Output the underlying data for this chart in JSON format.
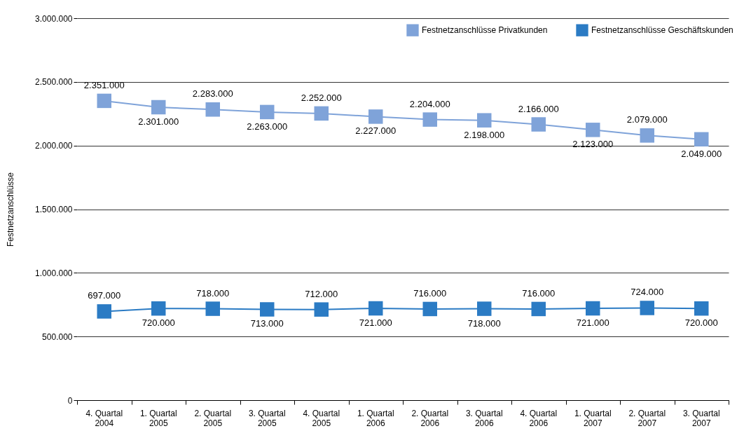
{
  "chart_data": {
    "type": "line",
    "ylabel": "Festnetzanschlüsse",
    "categories": [
      "4. Quartal 2004",
      "1. Quartal 2005",
      "2. Quartal 2005",
      "3. Quartal 2005",
      "4. Quartal 2005",
      "1. Quartal 2006",
      "2. Quartal 2006",
      "3. Quartal 2006",
      "4. Quartal 2006",
      "1. Quartal 2007",
      "2. Quartal 2007",
      "3. Quartal 2007"
    ],
    "series": [
      {
        "name": "Festnetzanschlüsse Privatkunden",
        "color": "#7fa3d9",
        "values": [
          2351000,
          2301000,
          2283000,
          2263000,
          2252000,
          2227000,
          2204000,
          2198000,
          2166000,
          2123000,
          2079000,
          2049000
        ],
        "value_labels": [
          "2.351.000",
          "2.301.000",
          "2.283.000",
          "2.263.000",
          "2.252.000",
          "2.227.000",
          "2.204.000",
          "2.198.000",
          "2.166.000",
          "2.123.000",
          "2.079.000",
          "2.049.000"
        ]
      },
      {
        "name": "Festnetzanschlüsse Geschäftskunden",
        "color": "#2b7bc4",
        "values": [
          697000,
          720000,
          718000,
          713000,
          712000,
          721000,
          716000,
          718000,
          716000,
          721000,
          724000,
          720000
        ],
        "value_labels": [
          "697.000",
          "720.000",
          "718.000",
          "713.000",
          "712.000",
          "721.000",
          "716.000",
          "718.000",
          "716.000",
          "721.000",
          "724.000",
          "720.000"
        ]
      }
    ],
    "ylim": [
      0,
      3000000
    ],
    "yticks": [
      0,
      {
        "value": 500000,
        "label": "500.000"
      },
      {
        "value": 1000000,
        "label": "1.000.000"
      },
      {
        "value": 1500000,
        "label": "1.500.000"
      },
      {
        "value": 2000000,
        "label": "2.000.000"
      },
      {
        "value": 2500000,
        "label": "2.500.000"
      },
      {
        "value": 3000000,
        "label": "3.000.000"
      }
    ],
    "grid": "y",
    "legend": "top right",
    "marker": "square"
  }
}
